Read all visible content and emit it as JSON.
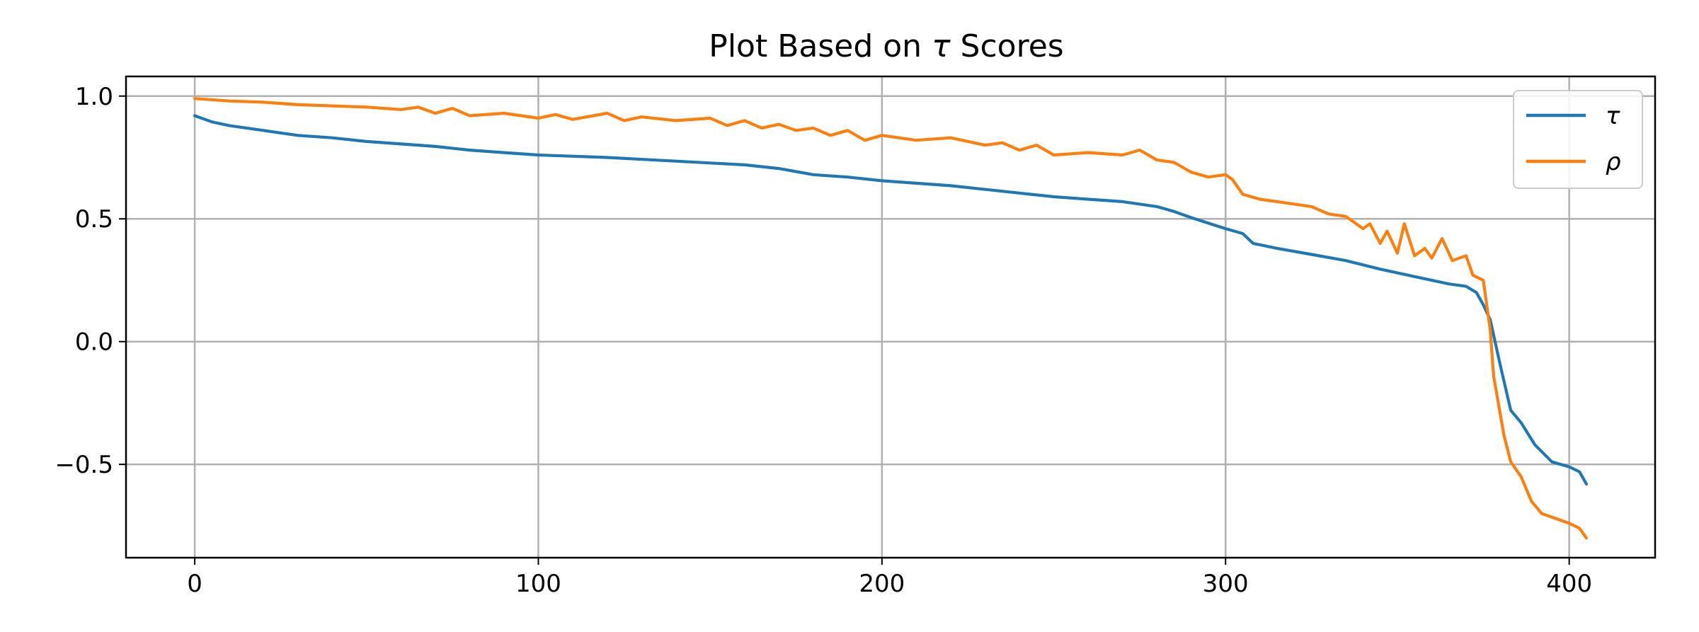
{
  "chart_data": {
    "type": "line",
    "title_prefix": "Plot Based on ",
    "title_symbol": "τ",
    "title_suffix": " Scores",
    "xlabel": "",
    "ylabel": "",
    "xlim": [
      -20,
      425
    ],
    "ylim": [
      -0.88,
      1.08
    ],
    "xticks": [
      0,
      100,
      200,
      300,
      400
    ],
    "xtick_labels": [
      "0",
      "100",
      "200",
      "300",
      "400"
    ],
    "yticks": [
      1.0,
      0.5,
      0.0,
      -0.5
    ],
    "ytick_labels": [
      "1.0",
      "0.5",
      "0.0",
      "−0.5"
    ],
    "grid": true,
    "legend_position": "top-right",
    "series": [
      {
        "name": "τ",
        "color": "#1f77b4",
        "points": [
          [
            0,
            0.92
          ],
          [
            5,
            0.895
          ],
          [
            10,
            0.88
          ],
          [
            20,
            0.86
          ],
          [
            30,
            0.84
          ],
          [
            40,
            0.83
          ],
          [
            50,
            0.815
          ],
          [
            60,
            0.805
          ],
          [
            70,
            0.795
          ],
          [
            80,
            0.78
          ],
          [
            90,
            0.77
          ],
          [
            100,
            0.76
          ],
          [
            120,
            0.75
          ],
          [
            140,
            0.735
          ],
          [
            160,
            0.72
          ],
          [
            170,
            0.705
          ],
          [
            180,
            0.68
          ],
          [
            190,
            0.67
          ],
          [
            200,
            0.655
          ],
          [
            220,
            0.635
          ],
          [
            240,
            0.605
          ],
          [
            250,
            0.59
          ],
          [
            260,
            0.58
          ],
          [
            270,
            0.57
          ],
          [
            280,
            0.55
          ],
          [
            285,
            0.53
          ],
          [
            290,
            0.505
          ],
          [
            300,
            0.46
          ],
          [
            305,
            0.44
          ],
          [
            308,
            0.4
          ],
          [
            315,
            0.38
          ],
          [
            325,
            0.355
          ],
          [
            335,
            0.33
          ],
          [
            345,
            0.295
          ],
          [
            355,
            0.265
          ],
          [
            365,
            0.235
          ],
          [
            370,
            0.225
          ],
          [
            373,
            0.2
          ],
          [
            375,
            0.15
          ],
          [
            377,
            0.09
          ],
          [
            380,
            -0.1
          ],
          [
            383,
            -0.28
          ],
          [
            386,
            -0.33
          ],
          [
            390,
            -0.42
          ],
          [
            395,
            -0.49
          ],
          [
            400,
            -0.51
          ],
          [
            403,
            -0.53
          ],
          [
            405,
            -0.58
          ]
        ]
      },
      {
        "name": "ρ",
        "color": "#ff7f0e",
        "points": [
          [
            0,
            0.99
          ],
          [
            10,
            0.98
          ],
          [
            20,
            0.975
          ],
          [
            30,
            0.965
          ],
          [
            40,
            0.96
          ],
          [
            50,
            0.955
          ],
          [
            60,
            0.945
          ],
          [
            65,
            0.955
          ],
          [
            70,
            0.93
          ],
          [
            75,
            0.95
          ],
          [
            80,
            0.92
          ],
          [
            90,
            0.93
          ],
          [
            100,
            0.91
          ],
          [
            105,
            0.925
          ],
          [
            110,
            0.905
          ],
          [
            120,
            0.93
          ],
          [
            125,
            0.9
          ],
          [
            130,
            0.915
          ],
          [
            140,
            0.9
          ],
          [
            150,
            0.91
          ],
          [
            155,
            0.88
          ],
          [
            160,
            0.9
          ],
          [
            165,
            0.87
          ],
          [
            170,
            0.885
          ],
          [
            175,
            0.86
          ],
          [
            180,
            0.87
          ],
          [
            185,
            0.84
          ],
          [
            190,
            0.86
          ],
          [
            195,
            0.82
          ],
          [
            200,
            0.84
          ],
          [
            210,
            0.82
          ],
          [
            220,
            0.83
          ],
          [
            230,
            0.8
          ],
          [
            235,
            0.81
          ],
          [
            240,
            0.78
          ],
          [
            245,
            0.8
          ],
          [
            250,
            0.76
          ],
          [
            260,
            0.77
          ],
          [
            270,
            0.76
          ],
          [
            275,
            0.78
          ],
          [
            280,
            0.74
          ],
          [
            285,
            0.73
          ],
          [
            290,
            0.69
          ],
          [
            295,
            0.67
          ],
          [
            300,
            0.68
          ],
          [
            302,
            0.66
          ],
          [
            305,
            0.6
          ],
          [
            310,
            0.58
          ],
          [
            315,
            0.57
          ],
          [
            320,
            0.56
          ],
          [
            325,
            0.55
          ],
          [
            330,
            0.52
          ],
          [
            335,
            0.51
          ],
          [
            340,
            0.46
          ],
          [
            342,
            0.48
          ],
          [
            345,
            0.4
          ],
          [
            347,
            0.45
          ],
          [
            350,
            0.36
          ],
          [
            352,
            0.48
          ],
          [
            355,
            0.35
          ],
          [
            358,
            0.38
          ],
          [
            360,
            0.34
          ],
          [
            363,
            0.42
          ],
          [
            366,
            0.33
          ],
          [
            370,
            0.35
          ],
          [
            372,
            0.27
          ],
          [
            375,
            0.25
          ],
          [
            377,
            0.05
          ],
          [
            378,
            -0.14
          ],
          [
            381,
            -0.38
          ],
          [
            383,
            -0.49
          ],
          [
            386,
            -0.55
          ],
          [
            389,
            -0.65
          ],
          [
            392,
            -0.7
          ],
          [
            396,
            -0.72
          ],
          [
            400,
            -0.74
          ],
          [
            403,
            -0.76
          ],
          [
            405,
            -0.8
          ]
        ]
      }
    ]
  }
}
